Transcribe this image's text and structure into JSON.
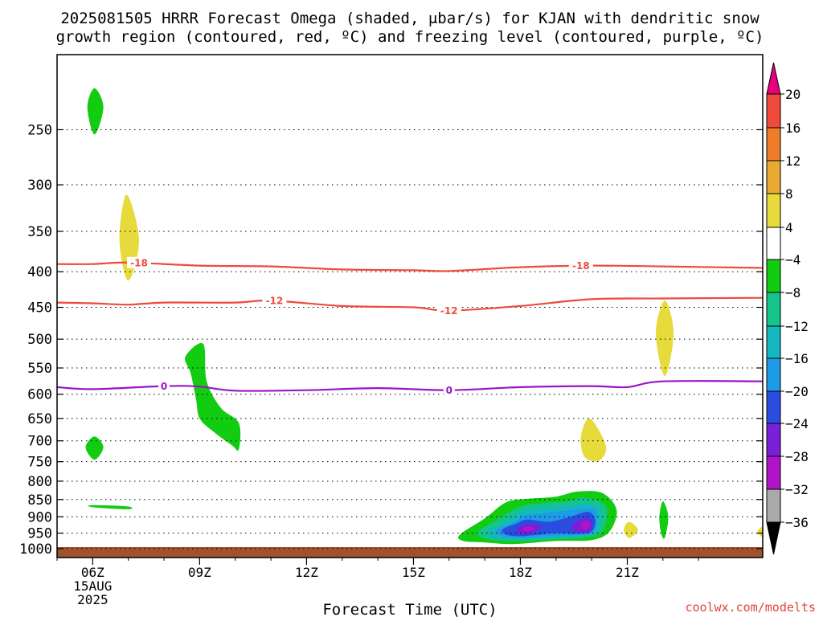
{
  "chart_data": {
    "type": "contour",
    "title_line1": "2025081505 HRRR Forecast Omega (shaded, μbar/s) for KJAN with dendritic snow",
    "title_line2": "growth region (contoured, red, ºC) and freezing level (contoured, purple, ºC)",
    "xlabel": "Forecast Time (UTC)",
    "credit": "coolwx.com/modelts",
    "x_range_hours": [
      5,
      24.8
    ],
    "y_range_mb": [
      195,
      1030
    ],
    "y_axis": "pressure-log-inverted",
    "grid": true,
    "x_ticks": [
      {
        "hour": 6,
        "label": "06Z",
        "sub1": "15AUG",
        "sub2": "2025"
      },
      {
        "hour": 9,
        "label": "09Z"
      },
      {
        "hour": 12,
        "label": "12Z"
      },
      {
        "hour": 15,
        "label": "15Z"
      },
      {
        "hour": 18,
        "label": "18Z"
      },
      {
        "hour": 21,
        "label": "21Z"
      }
    ],
    "y_ticks": [
      {
        "value": 250,
        "label": "250"
      },
      {
        "value": 300,
        "label": "300"
      },
      {
        "value": 350,
        "label": "350"
      },
      {
        "value": 400,
        "label": "400"
      },
      {
        "value": 450,
        "label": "450"
      },
      {
        "value": 500,
        "label": "500"
      },
      {
        "value": 550,
        "label": "550"
      },
      {
        "value": 600,
        "label": "600"
      },
      {
        "value": 650,
        "label": "650"
      },
      {
        "value": 700,
        "label": "700"
      },
      {
        "value": 750,
        "label": "750"
      },
      {
        "value": 800,
        "label": "800"
      },
      {
        "value": 850,
        "label": "850"
      },
      {
        "value": 900,
        "label": "900"
      },
      {
        "value": 950,
        "label": "950"
      },
      {
        "value": 1000,
        "label": "1000"
      }
    ],
    "colorbar": {
      "levels": [
        "20",
        "16",
        "12",
        "8",
        "4",
        "−4",
        "−8",
        "−12",
        "−16",
        "−20",
        "−24",
        "−28",
        "−32",
        "−36"
      ],
      "colors": {
        "pos_20": "#e8007e",
        "pos_16_20": "#ef4a3c",
        "pos_12_16": "#ef7c28",
        "pos_8_12": "#e8aa30",
        "pos_4_8": "#e6db3a",
        "zero": "#ffffff",
        "neg_4_8": "#11cc11",
        "neg_8_12": "#14c48a",
        "neg_12_16": "#15b8c0",
        "neg_16_20": "#1e9be6",
        "neg_20_24": "#2a4de0",
        "neg_24_28": "#7a1fd8",
        "neg_28_32": "#b014c8",
        "neg_32_36": "#aaaaaa",
        "neg_below": "#000000"
      }
    },
    "contours": [
      {
        "name": "dendritic -18",
        "color": "#ef4a3c",
        "label": "-18",
        "points": [
          [
            5,
            390
          ],
          [
            6,
            390
          ],
          [
            7,
            388
          ],
          [
            9,
            392
          ],
          [
            11,
            393
          ],
          [
            13,
            397
          ],
          [
            15,
            398
          ],
          [
            16,
            399
          ],
          [
            18,
            394
          ],
          [
            20,
            392
          ],
          [
            22,
            393
          ],
          [
            24.8,
            395
          ]
        ],
        "label_at": [
          [
            7.3,
            388
          ],
          [
            19.7,
            392
          ]
        ]
      },
      {
        "name": "dendritic -12",
        "color": "#ef4a3c",
        "label": "-12",
        "points": [
          [
            5,
            443
          ],
          [
            6,
            444
          ],
          [
            7,
            446
          ],
          [
            8,
            443
          ],
          [
            10,
            443
          ],
          [
            11,
            440
          ],
          [
            13,
            448
          ],
          [
            15,
            450
          ],
          [
            16,
            455
          ],
          [
            18,
            448
          ],
          [
            20,
            438
          ],
          [
            22,
            437
          ],
          [
            24.8,
            436
          ]
        ],
        "label_at": [
          [
            11.1,
            440
          ],
          [
            16.0,
            455
          ]
        ]
      },
      {
        "name": "freezing level 0",
        "color": "#9a14c8",
        "label": "0",
        "points": [
          [
            5,
            586
          ],
          [
            6,
            590
          ],
          [
            8,
            584
          ],
          [
            9,
            585
          ],
          [
            10,
            593
          ],
          [
            12,
            592
          ],
          [
            14,
            588
          ],
          [
            16,
            592
          ],
          [
            18,
            586
          ],
          [
            20,
            584
          ],
          [
            21,
            586
          ],
          [
            22,
            575
          ],
          [
            24.8,
            575
          ]
        ],
        "label_at": [
          [
            8.0,
            584
          ],
          [
            16.0,
            592
          ]
        ]
      }
    ],
    "omega_regions": [
      {
        "color": "#11cc11",
        "points": [
          [
            5.85,
            232
          ],
          [
            6.05,
            218
          ],
          [
            6.3,
            232
          ],
          [
            6.05,
            254
          ]
        ]
      },
      {
        "color": "#e6db3a",
        "points": [
          [
            6.75,
            360
          ],
          [
            6.95,
            310
          ],
          [
            7.3,
            360
          ],
          [
            7.0,
            412
          ]
        ]
      },
      {
        "color": "#11cc11",
        "points": [
          [
            8.6,
            530
          ],
          [
            9.1,
            508
          ],
          [
            9.2,
            575
          ],
          [
            9.6,
            628
          ],
          [
            10.1,
            660
          ],
          [
            10.1,
            720
          ],
          [
            9.9,
            710
          ],
          [
            9.4,
            680
          ],
          [
            9.0,
            650
          ],
          [
            8.9,
            610
          ],
          [
            8.75,
            560
          ]
        ]
      },
      {
        "color": "#11cc11",
        "points": [
          [
            5.8,
            715
          ],
          [
            6.05,
            690
          ],
          [
            6.3,
            715
          ],
          [
            6.05,
            745
          ]
        ]
      },
      {
        "color": "#11cc11",
        "points": [
          [
            6.0,
            866
          ],
          [
            7.0,
            870
          ],
          [
            6.98,
            878
          ],
          [
            6.0,
            872
          ]
        ]
      },
      {
        "color": "#e6db3a",
        "points": [
          [
            21.8,
            490
          ],
          [
            22.05,
            440
          ],
          [
            22.3,
            490
          ],
          [
            22.05,
            565
          ]
        ]
      },
      {
        "color": "#e6db3a",
        "points": [
          [
            19.7,
            690
          ],
          [
            19.95,
            650
          ],
          [
            20.4,
            712
          ],
          [
            20.2,
            748
          ],
          [
            19.8,
            738
          ]
        ]
      },
      {
        "color": "#e6db3a",
        "points": [
          [
            20.9,
            940
          ],
          [
            21.05,
            915
          ],
          [
            21.3,
            940
          ],
          [
            21.05,
            965
          ]
        ]
      },
      {
        "color": "#11cc11",
        "points": [
          [
            21.9,
            900
          ],
          [
            22.0,
            855
          ],
          [
            22.15,
            900
          ],
          [
            22.05,
            965
          ],
          [
            21.95,
            950
          ]
        ]
      },
      {
        "color": "#e6db3a",
        "points": [
          [
            24.8,
            930
          ],
          [
            24.65,
            945
          ],
          [
            24.8,
            962
          ]
        ]
      }
    ],
    "omega_nested": [
      {
        "color": "#11cc11",
        "points": [
          [
            16.3,
            955
          ],
          [
            17.0,
            905
          ],
          [
            17.6,
            858
          ],
          [
            18.2,
            848
          ],
          [
            19.0,
            842
          ],
          [
            19.6,
            828
          ],
          [
            20.3,
            832
          ],
          [
            20.7,
            880
          ],
          [
            20.5,
            945
          ],
          [
            20.0,
            972
          ],
          [
            19.0,
            975
          ],
          [
            17.8,
            985
          ],
          [
            17.0,
            980
          ],
          [
            16.4,
            975
          ]
        ]
      },
      {
        "color": "#14c48a",
        "points": [
          [
            16.8,
            948
          ],
          [
            17.4,
            905
          ],
          [
            18.0,
            870
          ],
          [
            18.6,
            860
          ],
          [
            19.3,
            855
          ],
          [
            19.8,
            845
          ],
          [
            20.4,
            870
          ],
          [
            20.3,
            945
          ],
          [
            19.8,
            965
          ],
          [
            19.0,
            970
          ],
          [
            17.9,
            976
          ],
          [
            17.1,
            970
          ]
        ]
      },
      {
        "color": "#15b8c0",
        "points": [
          [
            17.1,
            945
          ],
          [
            17.6,
            915
          ],
          [
            18.0,
            885
          ],
          [
            18.6,
            875
          ],
          [
            19.3,
            868
          ],
          [
            19.9,
            862
          ],
          [
            20.25,
            880
          ],
          [
            20.15,
            945
          ],
          [
            19.7,
            960
          ],
          [
            19.0,
            965
          ],
          [
            17.9,
            970
          ],
          [
            17.3,
            965
          ]
        ]
      },
      {
        "color": "#1e9be6",
        "points": [
          [
            17.3,
            942
          ],
          [
            17.8,
            918
          ],
          [
            18.1,
            898
          ],
          [
            18.6,
            890
          ],
          [
            19.3,
            882
          ],
          [
            20.0,
            875
          ],
          [
            20.15,
            900
          ],
          [
            20.05,
            945
          ],
          [
            19.7,
            955
          ],
          [
            19.0,
            958
          ],
          [
            17.95,
            965
          ],
          [
            17.5,
            960
          ]
        ]
      },
      {
        "color": "#2a4de0",
        "points": [
          [
            17.5,
            938
          ],
          [
            17.9,
            920
          ],
          [
            18.2,
            908
          ],
          [
            18.8,
            915
          ],
          [
            19.4,
            900
          ],
          [
            19.9,
            885
          ],
          [
            20.1,
            910
          ],
          [
            20.0,
            945
          ],
          [
            19.6,
            952
          ],
          [
            19.0,
            950
          ],
          [
            18.5,
            955
          ],
          [
            18.0,
            960
          ],
          [
            17.6,
            955
          ]
        ]
      },
      {
        "color": "#7a1fd8",
        "points": [
          [
            17.9,
            938
          ],
          [
            18.2,
            922
          ],
          [
            18.6,
            930
          ],
          [
            18.3,
            952
          ],
          [
            18.0,
            952
          ]
        ]
      },
      {
        "color": "#7a1fd8",
        "points": [
          [
            19.5,
            920
          ],
          [
            19.8,
            905
          ],
          [
            20.0,
            915
          ],
          [
            19.95,
            945
          ],
          [
            19.7,
            948
          ],
          [
            19.45,
            940
          ]
        ]
      },
      {
        "color": "#b014c8",
        "points": [
          [
            18.05,
            936
          ],
          [
            18.2,
            928
          ],
          [
            18.4,
            935
          ],
          [
            18.2,
            945
          ]
        ]
      },
      {
        "color": "#b014c8",
        "points": [
          [
            19.7,
            920
          ],
          [
            19.85,
            912
          ],
          [
            19.95,
            925
          ],
          [
            19.8,
            940
          ]
        ]
      }
    ],
    "ground": {
      "color": "#a0522d",
      "from_mb": 995
    }
  }
}
